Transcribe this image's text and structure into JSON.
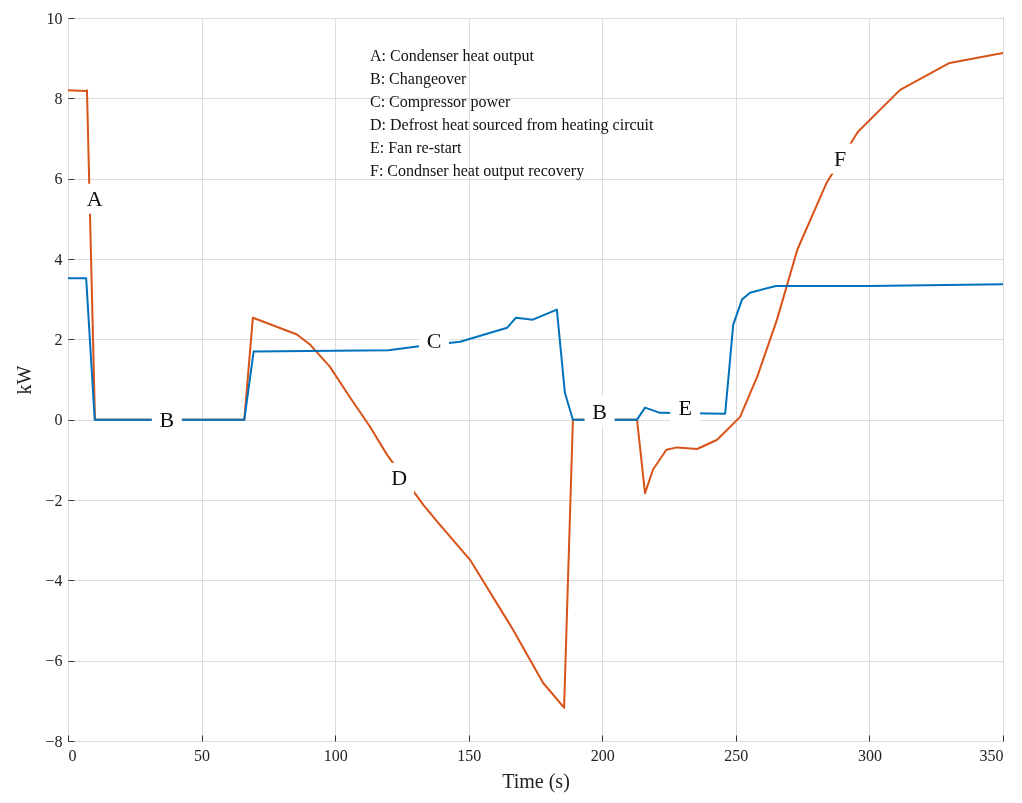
{
  "chart_data": {
    "type": "line",
    "xlabel": "Time (s)",
    "ylabel": "kW",
    "xlim": [
      0,
      350
    ],
    "xticks": [
      0,
      50,
      100,
      150,
      200,
      250,
      300,
      350
    ],
    "ylim": [
      -8,
      10
    ],
    "yticks": [
      -8,
      -6,
      -4,
      -2,
      0,
      2,
      4,
      6,
      8,
      10
    ],
    "grid": true,
    "line_style": "solid",
    "marker": "none",
    "series": [
      {
        "color": "#d95319",
        "x": [
          0,
          6.5,
          7.1,
          10.1,
          66,
          69.2,
          85.7,
          90.6,
          98,
          105.6,
          113,
          119.4,
          133,
          139,
          150.5,
          166.6,
          177.8,
          185.7,
          189,
          213,
          216,
          219,
          224,
          228,
          235.5,
          243,
          251.6,
          258,
          265.4,
          273,
          284,
          295.7,
          311.5,
          330,
          350
        ],
        "values": [
          8.2,
          8.18,
          8.2,
          0,
          0,
          2.54,
          2.12,
          1.87,
          1.32,
          0.55,
          -0.17,
          -0.87,
          -2.12,
          -2.6,
          -3.49,
          -5.23,
          -6.55,
          -7.17,
          0,
          0,
          -1.83,
          -1.24,
          -0.75,
          -0.69,
          -0.73,
          -0.5,
          0.07,
          1.07,
          2.49,
          4.23,
          5.9,
          7.17,
          8.21,
          8.88,
          9.13
        ]
      },
      {
        "color": "#0072bd",
        "x": [
          0,
          6.8,
          10,
          66,
          69.5,
          120,
          130.7,
          146.8,
          164.4,
          167.7,
          174,
          183,
          186,
          189,
          213,
          216,
          221.6,
          246,
          249,
          252.3,
          255.3,
          265,
          300,
          350
        ],
        "values": [
          3.52,
          3.52,
          0,
          0,
          1.7,
          1.73,
          1.82,
          1.94,
          2.29,
          2.54,
          2.49,
          2.74,
          0.67,
          0,
          0,
          0.3,
          0.17,
          0.15,
          2.36,
          2.99,
          3.16,
          3.33,
          3.33,
          3.37
        ]
      }
    ],
    "annotations": [
      {
        "text": "A",
        "x": 10,
        "y": 5.5
      },
      {
        "text": "B",
        "x": 37,
        "y": 0
      },
      {
        "text": "C",
        "x": 137,
        "y": 1.95
      },
      {
        "text": "D",
        "x": 124,
        "y": -1.45
      },
      {
        "text": "B",
        "x": 199,
        "y": 0.2
      },
      {
        "text": "E",
        "x": 231,
        "y": 0.3
      },
      {
        "text": "F",
        "x": 289,
        "y": 6.5
      },
      "A:  Condenser heat output",
      "B:  Changeover",
      "C:  Compressor power",
      "D:  Defrost heat sourced from heating circuit",
      "E:  Fan re-start",
      "F:  Condnser heat output recovery"
    ]
  }
}
